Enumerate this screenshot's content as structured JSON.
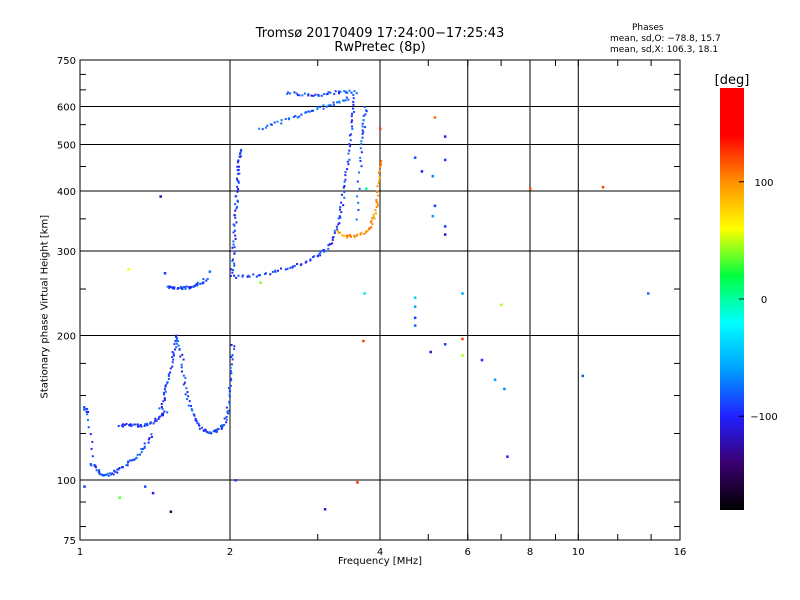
{
  "title_line1": "Tromsø 20170409 17:24:00−17:25:43",
  "title_line2": "RwPretec (8p)",
  "stats": {
    "header": "Phases",
    "line_o": "mean, sd,O: −78.8, 15.7",
    "line_x": "mean, sd,X: 106.3, 18.1"
  },
  "chart_data": {
    "type": "scatter",
    "xlabel": "Frequency [MHz]",
    "ylabel": "Stationary phase Virtual Height [km]",
    "xscale": "log",
    "yscale": "log",
    "xlim": [
      1,
      16
    ],
    "ylim": [
      75,
      750
    ],
    "xticks": [
      {
        "value": 1,
        "label": "1"
      },
      {
        "value": 2,
        "label": "2"
      },
      {
        "value": 4,
        "label": "4"
      },
      {
        "value": 6,
        "label": "6"
      },
      {
        "value": 8,
        "label": "8"
      },
      {
        "value": 10,
        "label": "10"
      },
      {
        "value": 16,
        "label": "16"
      }
    ],
    "yticks": [
      {
        "value": 75,
        "label": "75"
      },
      {
        "value": 100,
        "label": "100"
      },
      {
        "value": 200,
        "label": "200"
      },
      {
        "value": 300,
        "label": "300"
      },
      {
        "value": 400,
        "label": "400"
      },
      {
        "value": 500,
        "label": "500"
      },
      {
        "value": 600,
        "label": "600"
      },
      {
        "value": 750,
        "label": "750"
      }
    ],
    "grid": true,
    "colorbar": {
      "label": "[deg]",
      "range": [
        -180,
        180
      ],
      "ticks": [
        {
          "value": 100,
          "label": "100"
        },
        {
          "value": 0,
          "label": "0"
        },
        {
          "value": -100,
          "label": "−100"
        }
      ],
      "colors": [
        "#000000",
        "#3a0070",
        "#2020ff",
        "#00a0ff",
        "#00ffff",
        "#00ff40",
        "#ffff00",
        "#ff9000",
        "#ff0000",
        "#ff0000"
      ]
    },
    "curves": [
      {
        "name": "e-layer-low",
        "phase": -95,
        "points": [
          [
            1.02,
            142
          ],
          [
            1.04,
            138
          ],
          [
            1.06,
            108
          ],
          [
            1.09,
            104
          ],
          [
            1.12,
            102
          ],
          [
            1.16,
            103
          ],
          [
            1.2,
            105
          ],
          [
            1.25,
            108
          ],
          [
            1.3,
            112
          ],
          [
            1.35,
            118
          ],
          [
            1.4,
            125
          ]
        ]
      },
      {
        "name": "e-layer-flat",
        "phase": -100,
        "points": [
          [
            1.2,
            130
          ],
          [
            1.25,
            130
          ],
          [
            1.3,
            130
          ],
          [
            1.35,
            130
          ],
          [
            1.4,
            132
          ],
          [
            1.45,
            135
          ],
          [
            1.5,
            140
          ]
        ]
      },
      {
        "name": "e-cusp",
        "phase": -95,
        "points": [
          [
            1.45,
            140
          ],
          [
            1.48,
            150
          ],
          [
            1.5,
            160
          ],
          [
            1.53,
            175
          ],
          [
            1.55,
            190
          ],
          [
            1.57,
            200
          ],
          [
            1.6,
            180
          ],
          [
            1.62,
            160
          ],
          [
            1.65,
            145
          ],
          [
            1.7,
            135
          ],
          [
            1.75,
            128
          ],
          [
            1.8,
            126
          ],
          [
            1.85,
            126
          ],
          [
            1.9,
            127
          ],
          [
            1.95,
            130
          ],
          [
            1.98,
            140
          ],
          [
            2.0,
            155
          ],
          [
            2.02,
            175
          ],
          [
            2.03,
            195
          ]
        ]
      },
      {
        "name": "es-trace",
        "phase": -95,
        "points": [
          [
            1.5,
            252
          ],
          [
            1.55,
            251
          ],
          [
            1.6,
            251
          ],
          [
            1.65,
            252
          ],
          [
            1.7,
            254
          ],
          [
            1.75,
            258
          ],
          [
            1.8,
            262
          ]
        ]
      },
      {
        "name": "f-vertical",
        "phase": -100,
        "points": [
          [
            2.02,
            265
          ],
          [
            2.03,
            290
          ],
          [
            2.04,
            320
          ],
          [
            2.05,
            350
          ],
          [
            2.06,
            380
          ],
          [
            2.07,
            410
          ],
          [
            2.08,
            440
          ],
          [
            2.09,
            470
          ],
          [
            2.1,
            490
          ]
        ]
      },
      {
        "name": "f-ordinary",
        "phase": -100,
        "points": [
          [
            2.05,
            265
          ],
          [
            2.2,
            266
          ],
          [
            2.4,
            270
          ],
          [
            2.6,
            276
          ],
          [
            2.8,
            283
          ],
          [
            3.0,
            292
          ],
          [
            3.1,
            300
          ],
          [
            3.2,
            315
          ],
          [
            3.3,
            340
          ],
          [
            3.35,
            370
          ],
          [
            3.4,
            410
          ],
          [
            3.45,
            460
          ],
          [
            3.5,
            520
          ],
          [
            3.52,
            580
          ],
          [
            3.55,
            640
          ]
        ]
      },
      {
        "name": "f-upper-left",
        "phase": -85,
        "points": [
          [
            2.3,
            540
          ],
          [
            2.5,
            555
          ],
          [
            2.7,
            570
          ],
          [
            2.9,
            585
          ],
          [
            3.1,
            600
          ],
          [
            3.3,
            615
          ],
          [
            3.5,
            625
          ]
        ]
      },
      {
        "name": "f-upper-top",
        "phase": -95,
        "points": [
          [
            2.6,
            640
          ],
          [
            2.8,
            635
          ],
          [
            3.0,
            632
          ],
          [
            3.2,
            640
          ],
          [
            3.4,
            645
          ],
          [
            3.6,
            642
          ]
        ]
      },
      {
        "name": "f-extraordinary",
        "phase": 110,
        "points": [
          [
            3.3,
            328
          ],
          [
            3.45,
            322
          ],
          [
            3.6,
            322
          ],
          [
            3.75,
            328
          ],
          [
            3.85,
            340
          ],
          [
            3.92,
            360
          ],
          [
            3.96,
            390
          ],
          [
            3.99,
            430
          ],
          [
            4.01,
            470
          ]
        ]
      },
      {
        "name": "x-branch",
        "phase": -90,
        "points": [
          [
            3.6,
            350
          ],
          [
            3.65,
            450
          ],
          [
            3.7,
            520
          ],
          [
            3.72,
            560
          ],
          [
            3.75,
            600
          ]
        ]
      }
    ],
    "points": [
      {
        "x": 1.02,
        "y": 97,
        "phase": -100
      },
      {
        "x": 1.05,
        "y": 108,
        "phase": -80
      },
      {
        "x": 1.2,
        "y": 92,
        "phase": 20
      },
      {
        "x": 1.25,
        "y": 275,
        "phase": 60
      },
      {
        "x": 1.35,
        "y": 97,
        "phase": -90
      },
      {
        "x": 1.4,
        "y": 94,
        "phase": -110
      },
      {
        "x": 1.45,
        "y": 390,
        "phase": -130
      },
      {
        "x": 1.48,
        "y": 270,
        "phase": -100
      },
      {
        "x": 1.52,
        "y": 86,
        "phase": -150
      },
      {
        "x": 1.82,
        "y": 272,
        "phase": -80
      },
      {
        "x": 2.05,
        "y": 100,
        "phase": -100
      },
      {
        "x": 2.3,
        "y": 258,
        "phase": 30
      },
      {
        "x": 3.1,
        "y": 87,
        "phase": -120
      },
      {
        "x": 3.6,
        "y": 99,
        "phase": 160
      },
      {
        "x": 3.7,
        "y": 195,
        "phase": 150
      },
      {
        "x": 3.72,
        "y": 245,
        "phase": -30
      },
      {
        "x": 3.75,
        "y": 405,
        "phase": -10
      },
      {
        "x": 4.0,
        "y": 540,
        "phase": 150
      },
      {
        "x": 4.7,
        "y": 470,
        "phase": -90
      },
      {
        "x": 4.7,
        "y": 240,
        "phase": -40
      },
      {
        "x": 4.7,
        "y": 230,
        "phase": -60
      },
      {
        "x": 4.7,
        "y": 218,
        "phase": -100
      },
      {
        "x": 4.7,
        "y": 210,
        "phase": -80
      },
      {
        "x": 4.85,
        "y": 440,
        "phase": -110
      },
      {
        "x": 5.15,
        "y": 570,
        "phase": 130
      },
      {
        "x": 5.15,
        "y": 373,
        "phase": -100
      },
      {
        "x": 5.1,
        "y": 430,
        "phase": -70
      },
      {
        "x": 5.1,
        "y": 355,
        "phase": -60
      },
      {
        "x": 5.05,
        "y": 185,
        "phase": -120
      },
      {
        "x": 5.4,
        "y": 520,
        "phase": -110
      },
      {
        "x": 5.4,
        "y": 465,
        "phase": -100
      },
      {
        "x": 5.4,
        "y": 338,
        "phase": -100
      },
      {
        "x": 5.4,
        "y": 325,
        "phase": -120
      },
      {
        "x": 5.4,
        "y": 192,
        "phase": -100
      },
      {
        "x": 5.85,
        "y": 245,
        "phase": -60
      },
      {
        "x": 5.85,
        "y": 197,
        "phase": 150
      },
      {
        "x": 5.85,
        "y": 182,
        "phase": 40
      },
      {
        "x": 6.4,
        "y": 178,
        "phase": -110
      },
      {
        "x": 6.8,
        "y": 162,
        "phase": -60
      },
      {
        "x": 7.0,
        "y": 232,
        "phase": 40
      },
      {
        "x": 7.1,
        "y": 155,
        "phase": -70
      },
      {
        "x": 7.2,
        "y": 112,
        "phase": -110
      },
      {
        "x": 8.0,
        "y": 405,
        "phase": 140
      },
      {
        "x": 10.2,
        "y": 165,
        "phase": -90
      },
      {
        "x": 11.2,
        "y": 408,
        "phase": 150
      },
      {
        "x": 13.8,
        "y": 245,
        "phase": -80
      }
    ]
  }
}
